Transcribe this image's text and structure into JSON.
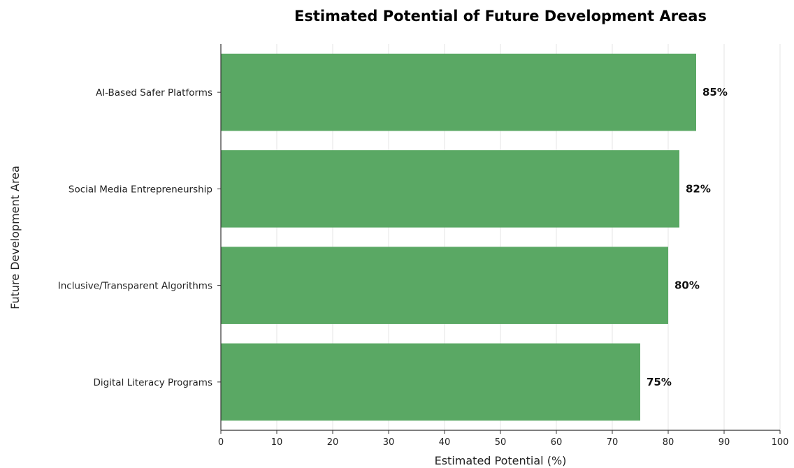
{
  "chart_data": {
    "type": "bar",
    "orientation": "horizontal",
    "title": "Estimated Potential of Future Development Areas",
    "xlabel": "Estimated Potential (%)",
    "ylabel": "Future Development Area",
    "categories": [
      "AI-Based Safer Platforms",
      "Social Media Entrepreneurship",
      "Inclusive/Transparent Algorithms",
      "Digital Literacy Programs"
    ],
    "values": [
      85,
      82,
      80,
      75
    ],
    "value_labels": [
      "85%",
      "82%",
      "80%",
      "75%"
    ],
    "xlim": [
      0,
      100
    ],
    "xticks": [
      0,
      10,
      20,
      30,
      40,
      50,
      60,
      70,
      80,
      90,
      100
    ],
    "grid": "vertical",
    "legend": "none",
    "colors": {
      "bar": "#5aa864",
      "grid": "#e6e6e6",
      "axis": "#333333"
    }
  }
}
